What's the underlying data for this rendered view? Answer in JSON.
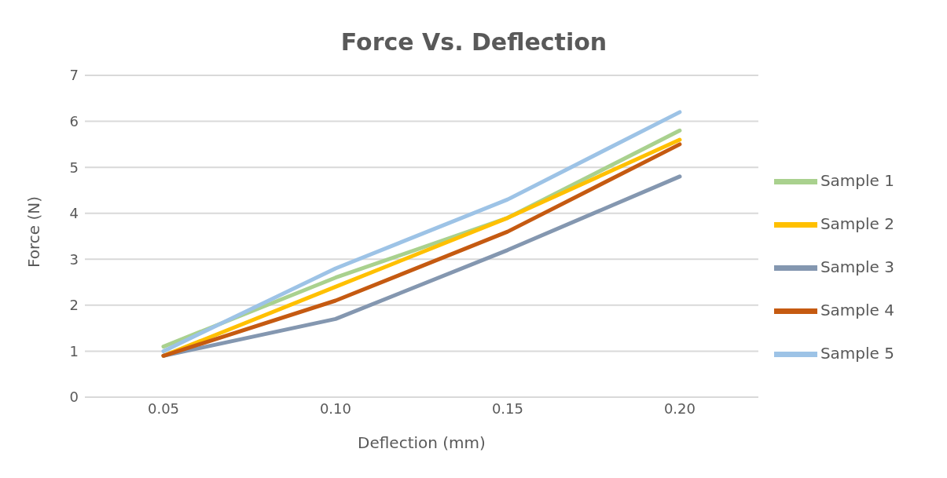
{
  "chart_data": {
    "type": "line",
    "title": "Force Vs. Deflection",
    "xlabel": "Deflection (mm)",
    "ylabel": "Force (N)",
    "categories": [
      "0.05",
      "0.10",
      "0.15",
      "0.20"
    ],
    "series": [
      {
        "name": "Sample 1",
        "color": "#a9d18e",
        "values": [
          1.1,
          2.6,
          3.9,
          5.8
        ]
      },
      {
        "name": "Sample 2",
        "color": "#ffc000",
        "values": [
          0.9,
          2.4,
          3.9,
          5.6
        ]
      },
      {
        "name": "Sample 3",
        "color": "#8497b0",
        "values": [
          0.9,
          1.7,
          3.2,
          4.8
        ]
      },
      {
        "name": "Sample 4",
        "color": "#c55a11",
        "values": [
          0.9,
          2.1,
          3.6,
          5.5
        ]
      },
      {
        "name": "Sample 5",
        "color": "#9dc3e6",
        "values": [
          1.0,
          2.8,
          4.3,
          6.2
        ]
      }
    ],
    "ylim": [
      0,
      7
    ],
    "yticks": [
      0,
      1,
      2,
      3,
      4,
      5,
      6,
      7
    ],
    "grid": "y",
    "legend": "right",
    "marker": "none",
    "line_style": "solid"
  }
}
